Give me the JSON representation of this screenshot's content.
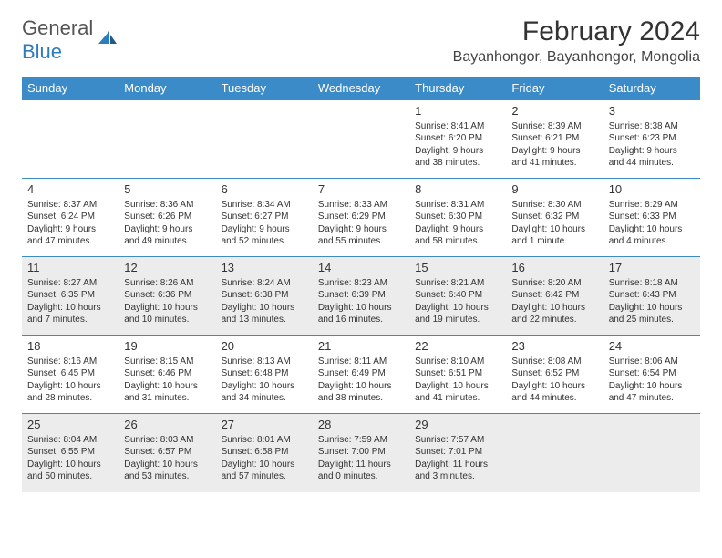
{
  "logo": {
    "text_gray": "General",
    "text_blue": "Blue"
  },
  "title": "February 2024",
  "location": "Bayanhongor, Bayanhongor, Mongolia",
  "colors": {
    "header_bg": "#3b8bc9",
    "header_text": "#ffffff",
    "border": "#3b8bc9",
    "gray_row": "#ececec",
    "logo_gray": "#555555",
    "logo_blue": "#2e7cc0"
  },
  "day_headers": [
    "Sunday",
    "Monday",
    "Tuesday",
    "Wednesday",
    "Thursday",
    "Friday",
    "Saturday"
  ],
  "weeks": [
    [
      null,
      null,
      null,
      null,
      {
        "n": "1",
        "sr": "Sunrise: 8:41 AM",
        "ss": "Sunset: 6:20 PM",
        "dl": "Daylight: 9 hours and 38 minutes."
      },
      {
        "n": "2",
        "sr": "Sunrise: 8:39 AM",
        "ss": "Sunset: 6:21 PM",
        "dl": "Daylight: 9 hours and 41 minutes."
      },
      {
        "n": "3",
        "sr": "Sunrise: 8:38 AM",
        "ss": "Sunset: 6:23 PM",
        "dl": "Daylight: 9 hours and 44 minutes."
      }
    ],
    [
      {
        "n": "4",
        "sr": "Sunrise: 8:37 AM",
        "ss": "Sunset: 6:24 PM",
        "dl": "Daylight: 9 hours and 47 minutes."
      },
      {
        "n": "5",
        "sr": "Sunrise: 8:36 AM",
        "ss": "Sunset: 6:26 PM",
        "dl": "Daylight: 9 hours and 49 minutes."
      },
      {
        "n": "6",
        "sr": "Sunrise: 8:34 AM",
        "ss": "Sunset: 6:27 PM",
        "dl": "Daylight: 9 hours and 52 minutes."
      },
      {
        "n": "7",
        "sr": "Sunrise: 8:33 AM",
        "ss": "Sunset: 6:29 PM",
        "dl": "Daylight: 9 hours and 55 minutes."
      },
      {
        "n": "8",
        "sr": "Sunrise: 8:31 AM",
        "ss": "Sunset: 6:30 PM",
        "dl": "Daylight: 9 hours and 58 minutes."
      },
      {
        "n": "9",
        "sr": "Sunrise: 8:30 AM",
        "ss": "Sunset: 6:32 PM",
        "dl": "Daylight: 10 hours and 1 minute."
      },
      {
        "n": "10",
        "sr": "Sunrise: 8:29 AM",
        "ss": "Sunset: 6:33 PM",
        "dl": "Daylight: 10 hours and 4 minutes."
      }
    ],
    [
      {
        "n": "11",
        "sr": "Sunrise: 8:27 AM",
        "ss": "Sunset: 6:35 PM",
        "dl": "Daylight: 10 hours and 7 minutes."
      },
      {
        "n": "12",
        "sr": "Sunrise: 8:26 AM",
        "ss": "Sunset: 6:36 PM",
        "dl": "Daylight: 10 hours and 10 minutes."
      },
      {
        "n": "13",
        "sr": "Sunrise: 8:24 AM",
        "ss": "Sunset: 6:38 PM",
        "dl": "Daylight: 10 hours and 13 minutes."
      },
      {
        "n": "14",
        "sr": "Sunrise: 8:23 AM",
        "ss": "Sunset: 6:39 PM",
        "dl": "Daylight: 10 hours and 16 minutes."
      },
      {
        "n": "15",
        "sr": "Sunrise: 8:21 AM",
        "ss": "Sunset: 6:40 PM",
        "dl": "Daylight: 10 hours and 19 minutes."
      },
      {
        "n": "16",
        "sr": "Sunrise: 8:20 AM",
        "ss": "Sunset: 6:42 PM",
        "dl": "Daylight: 10 hours and 22 minutes."
      },
      {
        "n": "17",
        "sr": "Sunrise: 8:18 AM",
        "ss": "Sunset: 6:43 PM",
        "dl": "Daylight: 10 hours and 25 minutes."
      }
    ],
    [
      {
        "n": "18",
        "sr": "Sunrise: 8:16 AM",
        "ss": "Sunset: 6:45 PM",
        "dl": "Daylight: 10 hours and 28 minutes."
      },
      {
        "n": "19",
        "sr": "Sunrise: 8:15 AM",
        "ss": "Sunset: 6:46 PM",
        "dl": "Daylight: 10 hours and 31 minutes."
      },
      {
        "n": "20",
        "sr": "Sunrise: 8:13 AM",
        "ss": "Sunset: 6:48 PM",
        "dl": "Daylight: 10 hours and 34 minutes."
      },
      {
        "n": "21",
        "sr": "Sunrise: 8:11 AM",
        "ss": "Sunset: 6:49 PM",
        "dl": "Daylight: 10 hours and 38 minutes."
      },
      {
        "n": "22",
        "sr": "Sunrise: 8:10 AM",
        "ss": "Sunset: 6:51 PM",
        "dl": "Daylight: 10 hours and 41 minutes."
      },
      {
        "n": "23",
        "sr": "Sunrise: 8:08 AM",
        "ss": "Sunset: 6:52 PM",
        "dl": "Daylight: 10 hours and 44 minutes."
      },
      {
        "n": "24",
        "sr": "Sunrise: 8:06 AM",
        "ss": "Sunset: 6:54 PM",
        "dl": "Daylight: 10 hours and 47 minutes."
      }
    ],
    [
      {
        "n": "25",
        "sr": "Sunrise: 8:04 AM",
        "ss": "Sunset: 6:55 PM",
        "dl": "Daylight: 10 hours and 50 minutes."
      },
      {
        "n": "26",
        "sr": "Sunrise: 8:03 AM",
        "ss": "Sunset: 6:57 PM",
        "dl": "Daylight: 10 hours and 53 minutes."
      },
      {
        "n": "27",
        "sr": "Sunrise: 8:01 AM",
        "ss": "Sunset: 6:58 PM",
        "dl": "Daylight: 10 hours and 57 minutes."
      },
      {
        "n": "28",
        "sr": "Sunrise: 7:59 AM",
        "ss": "Sunset: 7:00 PM",
        "dl": "Daylight: 11 hours and 0 minutes."
      },
      {
        "n": "29",
        "sr": "Sunrise: 7:57 AM",
        "ss": "Sunset: 7:01 PM",
        "dl": "Daylight: 11 hours and 3 minutes."
      },
      null,
      null
    ]
  ],
  "row_shading": [
    false,
    false,
    true,
    false,
    true
  ]
}
